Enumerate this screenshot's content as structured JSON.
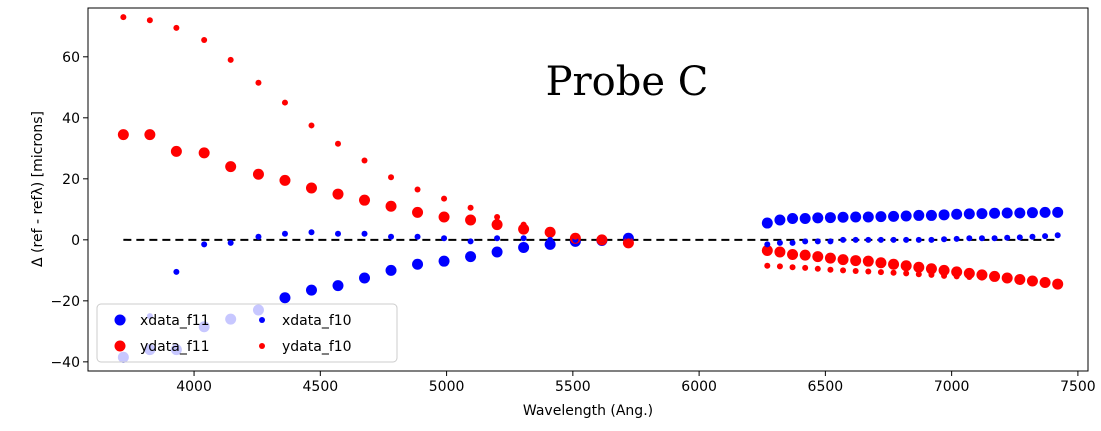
{
  "colors": {
    "xdata": "#0000ff",
    "ydata": "#ff0000",
    "reference_line": "#000000"
  },
  "chart_data": {
    "type": "scatter",
    "title": "",
    "annotation": "Probe C",
    "xlabel": "Wavelength (Ang.)",
    "ylabel": "Δ (ref - refλ) [microns]",
    "xlim": [
      3580,
      7540
    ],
    "ylim": [
      -43,
      76
    ],
    "xticks": [
      4000,
      4500,
      5000,
      5500,
      6000,
      6500,
      7000,
      7500
    ],
    "yticks": [
      -40,
      -20,
      0,
      20,
      40,
      60
    ],
    "grid": false,
    "legend_position": "lower-left",
    "reference_line": {
      "y": 0,
      "x_range": [
        3720,
        7420
      ],
      "style": "dashed"
    },
    "series": [
      {
        "name": "xdata_f11",
        "color": "#0000ff",
        "marker_size": "large",
        "points": [
          [
            3720,
            -38.5
          ],
          [
            3825,
            -36
          ],
          [
            3930,
            -36
          ],
          [
            4040,
            -28.5
          ],
          [
            4145,
            -26
          ],
          [
            4255,
            -23
          ],
          [
            4360,
            -19
          ],
          [
            4465,
            -16.5
          ],
          [
            4570,
            -15
          ],
          [
            4675,
            -12.5
          ],
          [
            4780,
            -10
          ],
          [
            4885,
            -8
          ],
          [
            4990,
            -7
          ],
          [
            5095,
            -5.5
          ],
          [
            5200,
            -4
          ],
          [
            5305,
            -2.5
          ],
          [
            5410,
            -1.5
          ],
          [
            5510,
            -0.5
          ],
          [
            5615,
            -0.2
          ],
          [
            5720,
            0.5
          ],
          [
            6270,
            5.5
          ],
          [
            6320,
            6.5
          ],
          [
            6370,
            7
          ],
          [
            6420,
            7
          ],
          [
            6470,
            7.2
          ],
          [
            6520,
            7.3
          ],
          [
            6570,
            7.4
          ],
          [
            6620,
            7.5
          ],
          [
            6670,
            7.5
          ],
          [
            6720,
            7.6
          ],
          [
            6770,
            7.7
          ],
          [
            6820,
            7.8
          ],
          [
            6870,
            8
          ],
          [
            6920,
            8
          ],
          [
            6970,
            8.2
          ],
          [
            7020,
            8.4
          ],
          [
            7070,
            8.5
          ],
          [
            7120,
            8.6
          ],
          [
            7170,
            8.7
          ],
          [
            7220,
            8.8
          ],
          [
            7270,
            8.8
          ],
          [
            7320,
            8.9
          ],
          [
            7370,
            9
          ],
          [
            7420,
            9
          ]
        ]
      },
      {
        "name": "ydata_f11",
        "color": "#ff0000",
        "marker_size": "large",
        "points": [
          [
            3720,
            34.5
          ],
          [
            3825,
            34.5
          ],
          [
            3930,
            29
          ],
          [
            4040,
            28.5
          ],
          [
            4145,
            24
          ],
          [
            4255,
            21.5
          ],
          [
            4360,
            19.5
          ],
          [
            4465,
            17
          ],
          [
            4570,
            15
          ],
          [
            4675,
            13
          ],
          [
            4780,
            11
          ],
          [
            4885,
            9
          ],
          [
            4990,
            7.5
          ],
          [
            5095,
            6.5
          ],
          [
            5200,
            5
          ],
          [
            5305,
            3.5
          ],
          [
            5410,
            2.5
          ],
          [
            5510,
            0.5
          ],
          [
            5615,
            0
          ],
          [
            5720,
            -1
          ],
          [
            6270,
            -3.5
          ],
          [
            6320,
            -4
          ],
          [
            6370,
            -4.8
          ],
          [
            6420,
            -5
          ],
          [
            6470,
            -5.5
          ],
          [
            6520,
            -6
          ],
          [
            6570,
            -6.5
          ],
          [
            6620,
            -6.8
          ],
          [
            6670,
            -7
          ],
          [
            6720,
            -7.5
          ],
          [
            6770,
            -8
          ],
          [
            6820,
            -8.5
          ],
          [
            6870,
            -9
          ],
          [
            6920,
            -9.5
          ],
          [
            6970,
            -10
          ],
          [
            7020,
            -10.5
          ],
          [
            7070,
            -11
          ],
          [
            7120,
            -11.5
          ],
          [
            7170,
            -12
          ],
          [
            7220,
            -12.5
          ],
          [
            7270,
            -13
          ],
          [
            7320,
            -13.5
          ],
          [
            7370,
            -14
          ],
          [
            7420,
            -14.5
          ]
        ]
      },
      {
        "name": "xdata_f10",
        "color": "#0000ff",
        "marker_size": "small",
        "points": [
          [
            3720,
            -26
          ],
          [
            3825,
            -25
          ],
          [
            3930,
            -10.5
          ],
          [
            4040,
            -1.5
          ],
          [
            4145,
            -1
          ],
          [
            4255,
            1
          ],
          [
            4360,
            2
          ],
          [
            4465,
            2.5
          ],
          [
            4570,
            2
          ],
          [
            4675,
            2
          ],
          [
            4780,
            1
          ],
          [
            4885,
            1
          ],
          [
            4990,
            0.5
          ],
          [
            5095,
            -0.5
          ],
          [
            5200,
            0.5
          ],
          [
            5305,
            0.5
          ],
          [
            5410,
            0
          ],
          [
            5510,
            0
          ],
          [
            5615,
            0
          ],
          [
            5720,
            0
          ],
          [
            6270,
            -1.5
          ],
          [
            6320,
            -1
          ],
          [
            6370,
            -1
          ],
          [
            6420,
            -0.5
          ],
          [
            6470,
            -0.5
          ],
          [
            6520,
            -0.5
          ],
          [
            6570,
            0
          ],
          [
            6620,
            0
          ],
          [
            6670,
            0
          ],
          [
            6720,
            0
          ],
          [
            6770,
            0
          ],
          [
            6820,
            0
          ],
          [
            6870,
            0
          ],
          [
            6920,
            0
          ],
          [
            6970,
            0.2
          ],
          [
            7020,
            0.3
          ],
          [
            7070,
            0.5
          ],
          [
            7120,
            0.5
          ],
          [
            7170,
            0.5
          ],
          [
            7220,
            0.7
          ],
          [
            7270,
            0.8
          ],
          [
            7320,
            1
          ],
          [
            7370,
            1.2
          ],
          [
            7420,
            1.5
          ]
        ]
      },
      {
        "name": "ydata_f10",
        "color": "#ff0000",
        "marker_size": "small",
        "points": [
          [
            3720,
            73
          ],
          [
            3825,
            72
          ],
          [
            3930,
            69.5
          ],
          [
            4040,
            65.5
          ],
          [
            4145,
            59
          ],
          [
            4255,
            51.5
          ],
          [
            4360,
            45
          ],
          [
            4465,
            37.5
          ],
          [
            4570,
            31.5
          ],
          [
            4675,
            26
          ],
          [
            4780,
            20.5
          ],
          [
            4885,
            16.5
          ],
          [
            4990,
            13.5
          ],
          [
            5095,
            10.5
          ],
          [
            5200,
            7.5
          ],
          [
            5305,
            5
          ],
          [
            5410,
            2.5
          ],
          [
            5510,
            1
          ],
          [
            5615,
            0
          ],
          [
            5720,
            -0.5
          ],
          [
            6270,
            -8.5
          ],
          [
            6320,
            -8.7
          ],
          [
            6370,
            -9
          ],
          [
            6420,
            -9.2
          ],
          [
            6470,
            -9.5
          ],
          [
            6520,
            -9.8
          ],
          [
            6570,
            -10
          ],
          [
            6620,
            -10.2
          ],
          [
            6670,
            -10.4
          ],
          [
            6720,
            -10.6
          ],
          [
            6770,
            -10.8
          ],
          [
            6820,
            -11
          ],
          [
            6870,
            -11.3
          ],
          [
            6920,
            -11.5
          ],
          [
            6970,
            -11.8
          ],
          [
            7020,
            -12
          ],
          [
            7070,
            -12.2
          ],
          [
            7120,
            -12.4
          ],
          [
            7170,
            -12.6
          ],
          [
            7220,
            -12.8
          ],
          [
            7270,
            -13
          ],
          [
            7320,
            -13.2
          ],
          [
            7370,
            -13.5
          ],
          [
            7420,
            -13.8
          ]
        ]
      }
    ]
  }
}
